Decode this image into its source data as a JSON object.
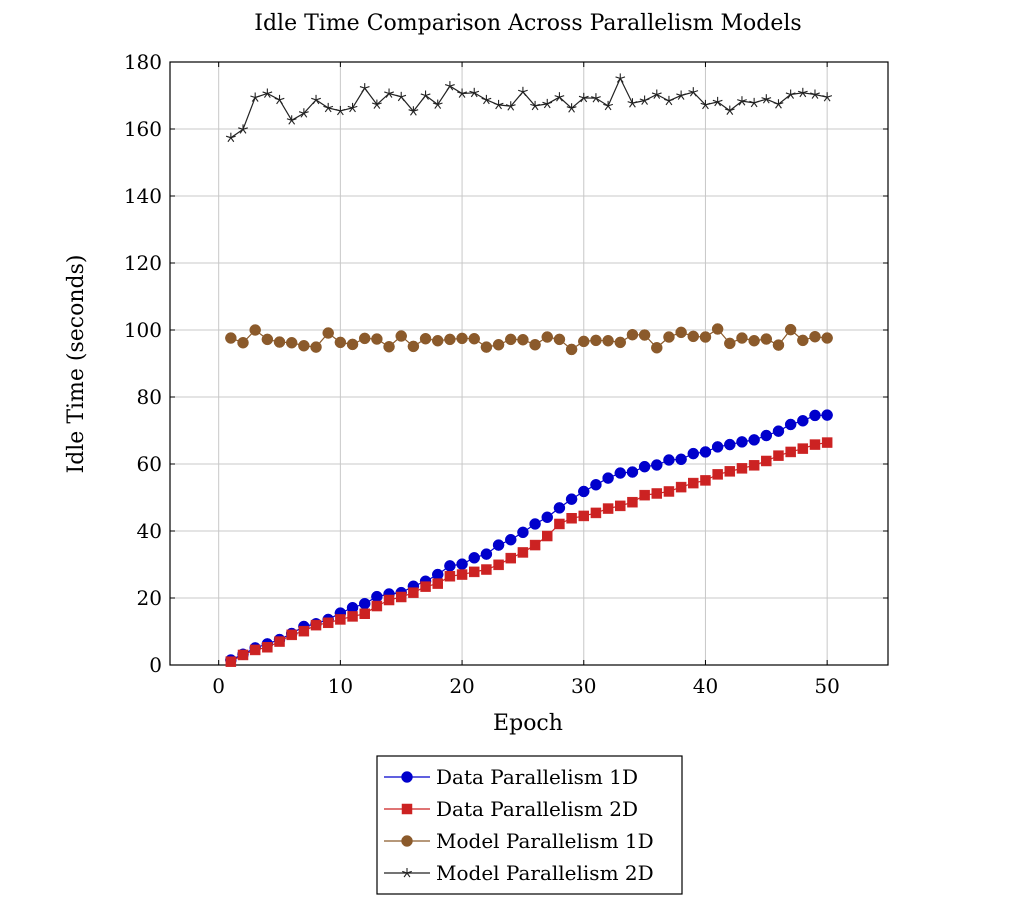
{
  "chart_data": {
    "type": "line",
    "title": "Idle Time Comparison Across Parallelism Models",
    "xlabel": "Epoch",
    "ylabel": "Idle Time (seconds)",
    "xlim": [
      -4,
      55
    ],
    "ylim": [
      0,
      180
    ],
    "xticks": [
      0,
      10,
      20,
      30,
      40,
      50
    ],
    "yticks": [
      0,
      20,
      40,
      60,
      80,
      100,
      120,
      140,
      160,
      180
    ],
    "grid": true,
    "legend_position": "bottom-center",
    "x": [
      1,
      2,
      3,
      4,
      5,
      6,
      7,
      8,
      9,
      10,
      11,
      12,
      13,
      14,
      15,
      16,
      17,
      18,
      19,
      20,
      21,
      22,
      23,
      24,
      25,
      26,
      27,
      28,
      29,
      30,
      31,
      32,
      33,
      34,
      35,
      36,
      37,
      38,
      39,
      40,
      41,
      42,
      43,
      44,
      45,
      46,
      47,
      48,
      49,
      50
    ],
    "series": [
      {
        "name": "Data Parallelism 1D",
        "color": "#0000cc",
        "marker": "circle",
        "values": [
          1.5,
          3.2,
          5.1,
          6.3,
          7.6,
          9.4,
          11.5,
          12.3,
          13.6,
          15.5,
          17.1,
          18.3,
          20.4,
          21.2,
          21.6,
          23.5,
          25.0,
          27.0,
          29.6,
          30.1,
          32.0,
          33.1,
          35.8,
          37.4,
          39.6,
          42.1,
          44.1,
          46.9,
          49.5,
          51.8,
          53.8,
          55.8,
          57.3,
          57.6,
          59.2,
          59.7,
          61.2,
          61.4,
          63.1,
          63.6,
          65.1,
          65.8,
          66.6,
          67.2,
          68.5,
          69.8,
          71.8,
          72.9,
          74.5,
          74.6
        ]
      },
      {
        "name": "Data Parallelism 2D",
        "color": "#cc2222",
        "marker": "square",
        "values": [
          1.0,
          3.0,
          4.5,
          5.3,
          7.0,
          9.0,
          10.1,
          11.9,
          12.6,
          13.6,
          14.5,
          15.3,
          17.6,
          19.4,
          20.3,
          21.6,
          23.4,
          24.3,
          26.5,
          27.0,
          27.8,
          28.5,
          29.9,
          31.9,
          33.6,
          35.8,
          38.5,
          42.1,
          43.8,
          44.5,
          45.4,
          46.7,
          47.5,
          48.6,
          50.7,
          51.2,
          51.8,
          53.1,
          54.3,
          55.1,
          56.9,
          57.8,
          58.7,
          59.6,
          60.9,
          62.5,
          63.6,
          64.6,
          65.8,
          66.4
        ]
      },
      {
        "name": "Model Parallelism 1D",
        "color": "#8b5a2b",
        "marker": "circle",
        "values": [
          97.6,
          96.2,
          100.0,
          97.2,
          96.4,
          96.2,
          95.3,
          94.9,
          99.1,
          96.3,
          95.7,
          97.5,
          97.3,
          95.0,
          98.2,
          95.1,
          97.4,
          96.8,
          97.2,
          97.5,
          97.4,
          94.9,
          95.6,
          97.2,
          97.1,
          95.6,
          97.9,
          97.2,
          94.2,
          96.6,
          96.9,
          96.8,
          96.3,
          98.6,
          98.5,
          94.7,
          97.9,
          99.3,
          98.1,
          97.9,
          100.3,
          96.0,
          97.6,
          96.8,
          97.3,
          95.5,
          100.1,
          96.9,
          98.0,
          97.6
        ]
      },
      {
        "name": "Model Parallelism 2D",
        "color": "#222222",
        "marker": "star",
        "values": [
          157.4,
          159.9,
          169.4,
          170.6,
          168.7,
          162.6,
          164.7,
          168.7,
          166.3,
          165.4,
          166.3,
          172.2,
          167.3,
          170.6,
          169.6,
          165.3,
          170.0,
          167.3,
          172.8,
          170.6,
          170.8,
          168.7,
          167.2,
          166.8,
          171.1,
          166.9,
          167.5,
          169.5,
          166.2,
          169.3,
          169.2,
          166.9,
          175.1,
          167.7,
          168.5,
          170.3,
          168.4,
          170.0,
          171.0,
          167.2,
          168.1,
          165.5,
          168.3,
          167.8,
          168.9,
          167.4,
          170.3,
          170.8,
          170.3,
          169.5
        ]
      }
    ]
  }
}
